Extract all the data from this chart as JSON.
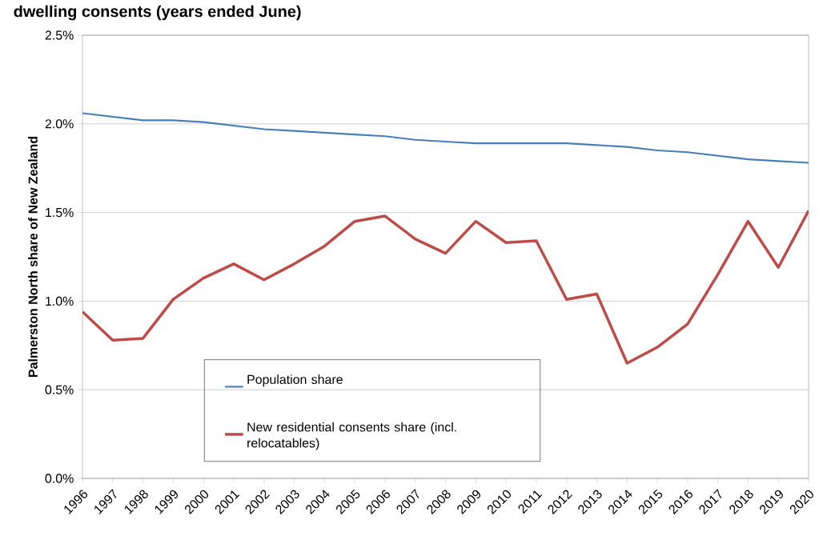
{
  "chart_data": {
    "type": "line",
    "title": "dwelling consents (years ended June)",
    "ylabel": "Palmerston North share of New Zealand",
    "categories": [
      "1996",
      "1997",
      "1998",
      "1999",
      "2000",
      "2001",
      "2002",
      "2003",
      "2004",
      "2005",
      "2006",
      "2007",
      "2008",
      "2009",
      "2010",
      "2011",
      "2012",
      "2013",
      "2014",
      "2015",
      "2016",
      "2017",
      "2018",
      "2019",
      "2020"
    ],
    "series": [
      {
        "name": "Population share",
        "color": "#4a7ebb",
        "values": [
          2.06,
          2.04,
          2.02,
          2.02,
          2.01,
          1.99,
          1.97,
          1.96,
          1.95,
          1.94,
          1.93,
          1.91,
          1.9,
          1.89,
          1.89,
          1.89,
          1.89,
          1.88,
          1.87,
          1.85,
          1.84,
          1.82,
          1.8,
          1.79,
          1.78
        ]
      },
      {
        "name": "New residential consents share (incl. relocatables)",
        "color": "#be4b48",
        "values": [
          0.94,
          0.78,
          0.79,
          1.01,
          1.13,
          1.21,
          1.12,
          1.21,
          1.31,
          1.45,
          1.48,
          1.35,
          1.27,
          1.45,
          1.33,
          1.34,
          1.01,
          1.04,
          0.65,
          0.74,
          0.87,
          1.15,
          1.45,
          1.19,
          1.51
        ]
      }
    ],
    "ylim": [
      0,
      2.5
    ],
    "yticks": [
      {
        "value": 0,
        "label": "0.0%"
      },
      {
        "value": 0.5,
        "label": "0.5%"
      },
      {
        "value": 1.0,
        "label": "1.0%"
      },
      {
        "value": 1.5,
        "label": "1.5%"
      },
      {
        "value": 2.0,
        "label": "2.0%"
      },
      {
        "value": 2.5,
        "label": "2.5%"
      }
    ],
    "grid": "y",
    "legend": "bottom"
  }
}
